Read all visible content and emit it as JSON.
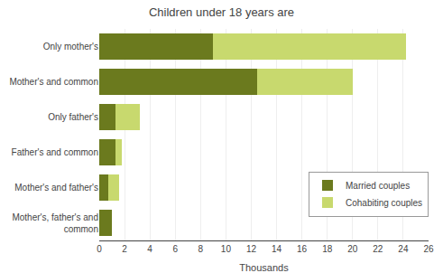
{
  "chart_data": {
    "type": "bar",
    "orientation": "horizontal",
    "stacked": true,
    "title": "Children under 18 years are",
    "xlabel": "Thousands",
    "categories": [
      "Mother's, father's and\ncommon",
      "Mother's and father's",
      "Father's and common",
      "Only father's",
      "Mother's and common",
      "Only mother's"
    ],
    "series": [
      {
        "name": "Married couples",
        "color": "#6b7a1e",
        "values": [
          1.0,
          0.7,
          1.3,
          1.3,
          12.5,
          9.0
        ]
      },
      {
        "name": "Cohabiting couples",
        "color": "#c8d96e",
        "values": [
          0.0,
          0.9,
          0.5,
          1.9,
          7.5,
          15.2
        ]
      }
    ],
    "xlim": [
      0,
      26
    ],
    "xticks": [
      0,
      2,
      4,
      6,
      8,
      10,
      12,
      14,
      16,
      18,
      20,
      22,
      24,
      26
    ],
    "grid": true,
    "legend": "lower right"
  }
}
